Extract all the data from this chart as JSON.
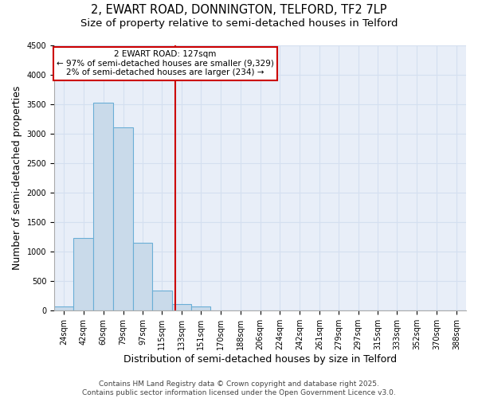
{
  "title_line1": "2, EWART ROAD, DONNINGTON, TELFORD, TF2 7LP",
  "title_line2": "Size of property relative to semi-detached houses in Telford",
  "xlabel": "Distribution of semi-detached houses by size in Telford",
  "ylabel": "Number of semi-detached properties",
  "annotation_title": "2 EWART ROAD: 127sqm",
  "annotation_line1": "← 97% of semi-detached houses are smaller (9,329)",
  "annotation_line2": "2% of semi-detached houses are larger (234) →",
  "bin_labels": [
    "24sqm",
    "42sqm",
    "60sqm",
    "79sqm",
    "97sqm",
    "115sqm",
    "133sqm",
    "151sqm",
    "170sqm",
    "188sqm",
    "206sqm",
    "224sqm",
    "242sqm",
    "261sqm",
    "279sqm",
    "297sqm",
    "315sqm",
    "333sqm",
    "352sqm",
    "370sqm",
    "388sqm"
  ],
  "bin_edges": [
    15,
    33,
    51,
    70,
    88,
    106,
    124,
    142,
    160,
    179,
    197,
    215,
    233,
    252,
    270,
    288,
    306,
    324,
    342,
    361,
    379,
    397
  ],
  "bar_values": [
    70,
    1220,
    3520,
    3100,
    1150,
    340,
    100,
    60,
    0,
    0,
    0,
    0,
    0,
    0,
    0,
    0,
    0,
    0,
    0,
    0,
    0
  ],
  "bar_color": "#c9daea",
  "bar_edge_color": "#6aaed6",
  "vline_color": "#cc0000",
  "vline_x": 127,
  "ylim": [
    0,
    4500
  ],
  "yticks": [
    0,
    500,
    1000,
    1500,
    2000,
    2500,
    3000,
    3500,
    4000,
    4500
  ],
  "grid_color": "#d4dff0",
  "background_color": "#e8eef8",
  "footer_line1": "Contains HM Land Registry data © Crown copyright and database right 2025.",
  "footer_line2": "Contains public sector information licensed under the Open Government Licence v3.0.",
  "title_fontsize": 10.5,
  "subtitle_fontsize": 9.5,
  "axis_label_fontsize": 9,
  "tick_fontsize": 7,
  "annotation_fontsize": 7.5,
  "footer_fontsize": 6.5
}
